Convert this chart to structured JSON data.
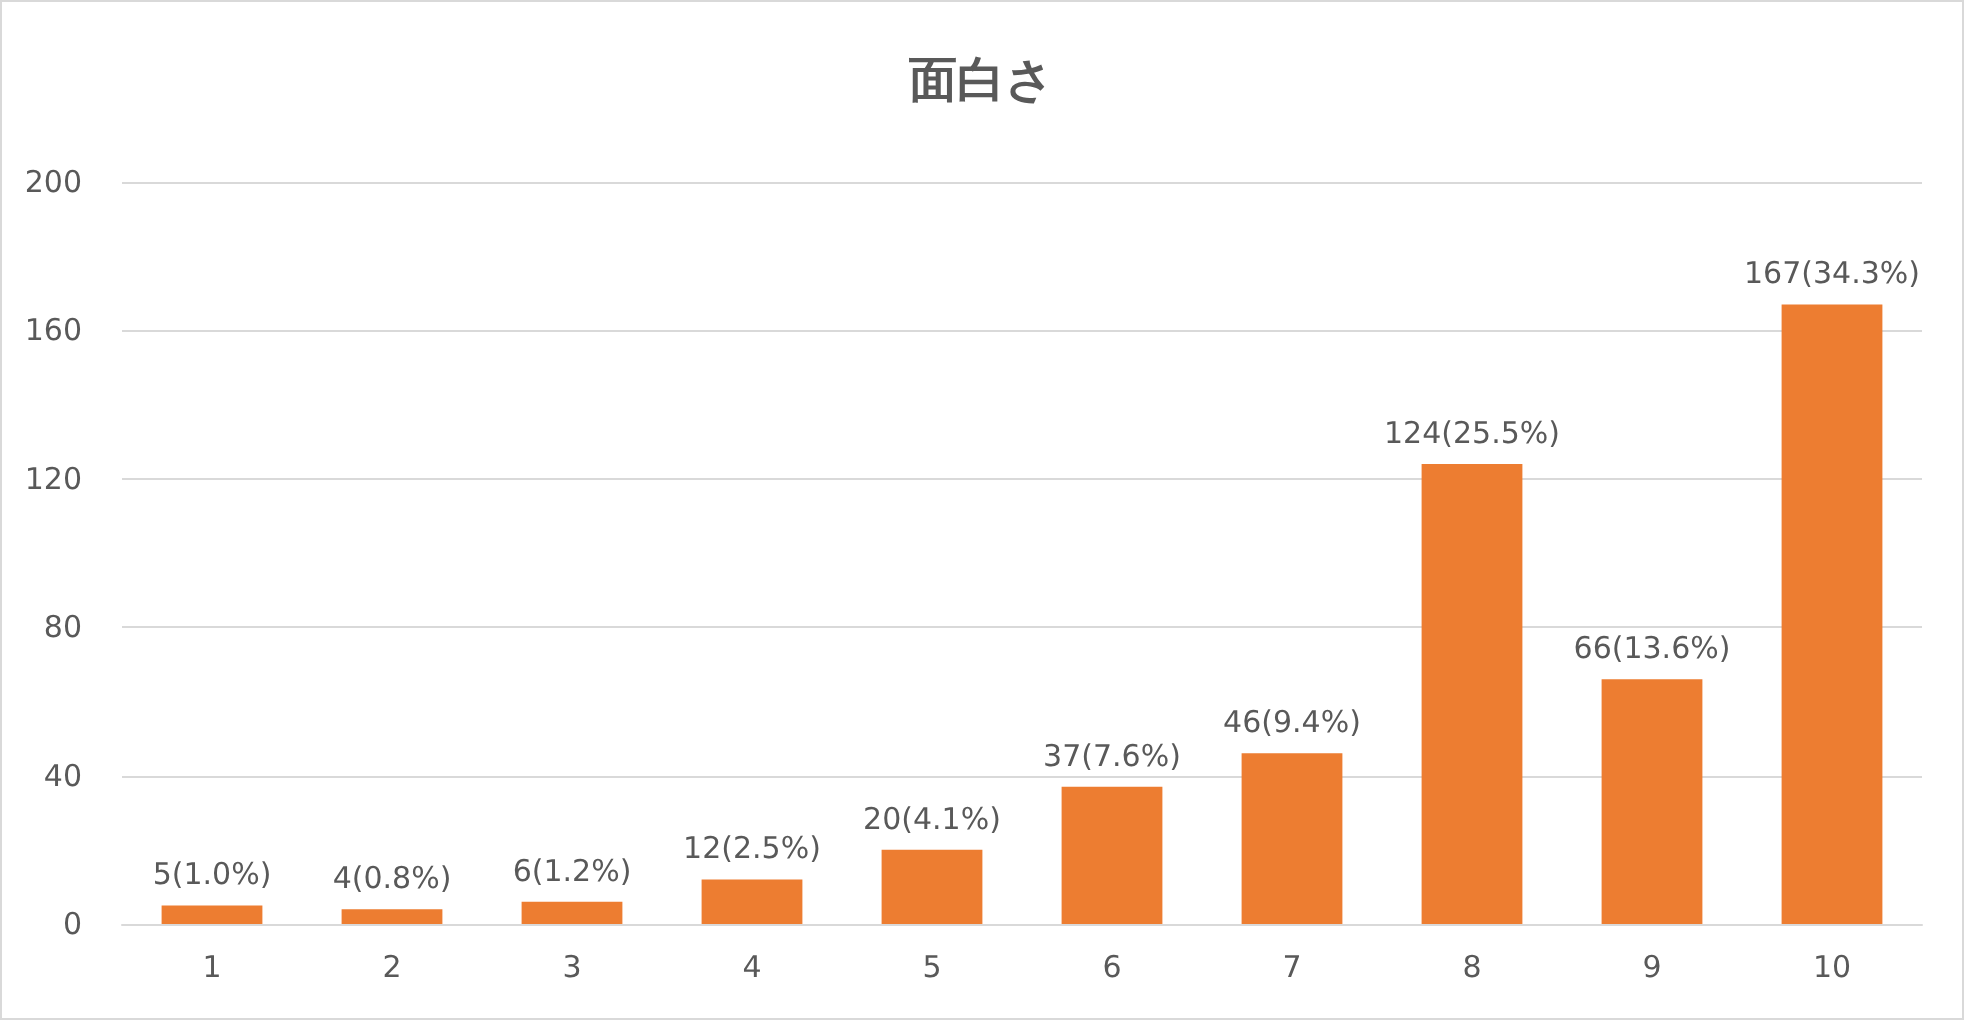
{
  "chart_data": {
    "type": "bar",
    "title": "面白さ",
    "categories": [
      "1",
      "2",
      "3",
      "4",
      "5",
      "6",
      "7",
      "8",
      "9",
      "10"
    ],
    "values": [
      5,
      4,
      6,
      12,
      20,
      37,
      46,
      124,
      66,
      167
    ],
    "value_labels": [
      "5(1.0%)",
      "4(0.8%)",
      "6(1.2%)",
      "12(2.5%)",
      "20(4.1%)",
      "37(7.6%)",
      "46(9.4%)",
      "124(25.5%)",
      "66(13.6%)",
      "167(34.3%)"
    ],
    "color": "#ed7d31",
    "ylim": [
      0,
      200
    ],
    "yticks": [
      0,
      40,
      80,
      120,
      160,
      200
    ],
    "grid": "y"
  }
}
